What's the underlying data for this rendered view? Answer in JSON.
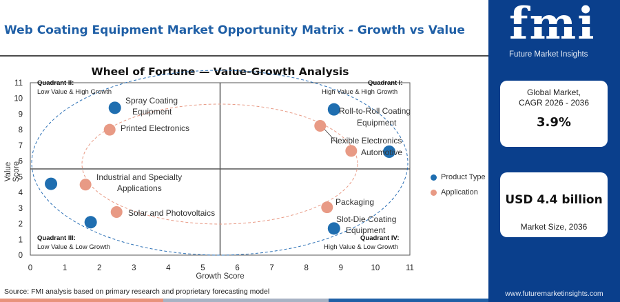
{
  "header": {
    "title": "Web Coating Equipment Market Opportunity Matrix - Growth vs Value"
  },
  "chart_data": {
    "type": "scatter",
    "title": "Wheel of Fortune — Value-Growth Analysis",
    "xlabel": "Growth Score",
    "ylabel": "Value Score",
    "xlim": [
      0,
      11
    ],
    "ylim": [
      0,
      11
    ],
    "x_ticks": [
      0,
      1,
      2,
      3,
      4,
      5,
      6,
      7,
      8,
      9,
      10,
      11
    ],
    "y_ticks": [
      0,
      1,
      2,
      3,
      4,
      5,
      6,
      7,
      8,
      9,
      10,
      11
    ],
    "divider_x": 5.5,
    "divider_y": 5.5,
    "grid": false,
    "legend_position": "right",
    "series": [
      {
        "name": "Product Type",
        "color": "#1f6eb0",
        "points": [
          {
            "label": "Spray Coating Equipment",
            "x": 2.45,
            "y": 9.4
          },
          {
            "label": "Roll-to-Roll Coating Equipment",
            "x": 8.8,
            "y": 9.3
          },
          {
            "label": "",
            "x": 10.4,
            "y": 6.6
          },
          {
            "label": "",
            "x": 0.6,
            "y": 4.55
          },
          {
            "label": "",
            "x": 1.75,
            "y": 2.1
          },
          {
            "label": "Slot-Die Coating Equipment",
            "x": 8.8,
            "y": 1.7
          }
        ]
      },
      {
        "name": "Application",
        "color": "#e89a85",
        "points": [
          {
            "label": "Printed Electronics",
            "x": 2.3,
            "y": 8.0
          },
          {
            "label": "Flexible Electronics",
            "x": 8.4,
            "y": 8.25
          },
          {
            "label": "Automotive",
            "x": 9.3,
            "y": 6.65
          },
          {
            "label": "Industrial and Specialty Applications",
            "x": 1.6,
            "y": 4.5
          },
          {
            "label": "Solar and Photovoltaics",
            "x": 2.5,
            "y": 2.75
          },
          {
            "label": "Packaging",
            "x": 8.6,
            "y": 3.05
          }
        ]
      }
    ],
    "quadrants": [
      {
        "name": "Quadrant II:",
        "description": "Low Value & High Growth"
      },
      {
        "name": "Quadrant I:",
        "description": "High Value & High Growth"
      },
      {
        "name": "Quadrant III:",
        "description": "Low Value & Low Growth"
      },
      {
        "name": "Quadrant IV:",
        "description": "High Value & Low Growth"
      }
    ]
  },
  "source_note": "Source: FMI analysis based on primary research and proprietary forecasting model",
  "sidebar": {
    "logo_text": "fmi",
    "logo_subtitle": "Future Market Insights",
    "cagr_label_line1": "Global Market,",
    "cagr_label_line2": "CAGR 2026 - 2036",
    "cagr_value": "3.9%",
    "market_size_value": "USD 4.4 billion",
    "market_size_label": "Market Size, 2036",
    "website": "www.futuremarketinsights.com"
  },
  "colors": {
    "brand_blue": "#0a3f8c",
    "title_blue": "#1f5fa6",
    "product_type": "#1f6eb0",
    "application": "#e89a85"
  }
}
